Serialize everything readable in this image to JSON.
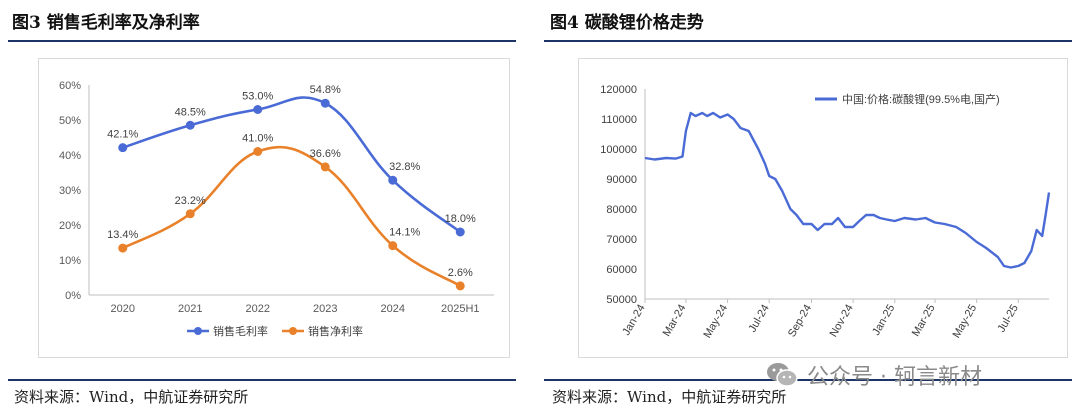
{
  "left": {
    "title": "图3  销售毛利率及净利率",
    "source": "资料来源：Wind，中航证券研究所"
  },
  "right": {
    "title": "图4  碳酸锂价格走势",
    "source": "资料来源：Wind，中航证券研究所"
  },
  "watermark": {
    "text": "公众号 · 轲言新材",
    "icon": "wechat-icon"
  },
  "colors": {
    "blue": "#4A6BD6",
    "orange": "#E9812A",
    "rule": "#1d3566",
    "grid": "#d9d9d9"
  },
  "chart_data": [
    {
      "type": "line",
      "categories": [
        "2020",
        "2021",
        "2022",
        "2023",
        "2024",
        "2025H1"
      ],
      "series": [
        {
          "name": "销售毛利率",
          "values": [
            42.1,
            48.5,
            53.0,
            54.8,
            32.8,
            18.0
          ],
          "labels": [
            "42.1%",
            "48.5%",
            "53.0%",
            "54.8%",
            "32.8%",
            "18.0%"
          ]
        },
        {
          "name": "销售净利率",
          "values": [
            13.4,
            23.2,
            41.0,
            36.6,
            14.1,
            2.6
          ],
          "labels": [
            "13.4%",
            "23.2%",
            "41.0%",
            "36.6%",
            "14.1%",
            "2.6%"
          ]
        }
      ],
      "yticks": [
        "0%",
        "10%",
        "20%",
        "30%",
        "40%",
        "50%",
        "60%"
      ],
      "ylim": [
        0,
        60
      ],
      "smooth": true,
      "markers": true,
      "legend": "bottom",
      "grid": false
    },
    {
      "type": "line",
      "x": [
        "2024-01-01",
        "2024-01-15",
        "2024-02-01",
        "2024-02-15",
        "2024-02-25",
        "2024-03-01",
        "2024-03-08",
        "2024-03-15",
        "2024-03-25",
        "2024-04-01",
        "2024-04-10",
        "2024-04-20",
        "2024-05-01",
        "2024-05-10",
        "2024-05-20",
        "2024-06-01",
        "2024-06-15",
        "2024-06-25",
        "2024-07-01",
        "2024-07-10",
        "2024-07-20",
        "2024-08-01",
        "2024-08-10",
        "2024-08-20",
        "2024-09-01",
        "2024-09-10",
        "2024-09-20",
        "2024-10-01",
        "2024-10-10",
        "2024-10-20",
        "2024-11-01",
        "2024-11-10",
        "2024-11-20",
        "2024-12-01",
        "2024-12-10",
        "2024-12-20",
        "2025-01-01",
        "2025-01-15",
        "2025-02-01",
        "2025-02-15",
        "2025-03-01",
        "2025-03-15",
        "2025-04-01",
        "2025-04-15",
        "2025-05-01",
        "2025-05-15",
        "2025-06-01",
        "2025-06-10",
        "2025-06-20",
        "2025-07-01",
        "2025-07-10",
        "2025-07-20",
        "2025-07-28",
        "2025-08-05",
        "2025-08-10",
        "2025-08-15"
      ],
      "y": [
        97000,
        96500,
        97000,
        96800,
        97500,
        106000,
        112000,
        111000,
        112000,
        111000,
        112000,
        110500,
        111500,
        110000,
        107000,
        106000,
        100000,
        95000,
        91000,
        90000,
        86000,
        80000,
        78000,
        75000,
        75000,
        73000,
        75000,
        75000,
        77000,
        74000,
        74000,
        76000,
        78000,
        78000,
        77000,
        76500,
        76000,
        77000,
        76500,
        77000,
        75500,
        75000,
        74000,
        72000,
        69000,
        67000,
        64000,
        61000,
        60500,
        61000,
        62000,
        66000,
        73000,
        71000,
        78000,
        85500
      ],
      "series_name": "中国:价格:碳酸锂(99.5%电,国产)",
      "yticks": [
        "50000",
        "60000",
        "70000",
        "80000",
        "90000",
        "100000",
        "110000",
        "120000"
      ],
      "ylim": [
        50000,
        120000
      ],
      "xticks": [
        "Jan-24",
        "Mar-24",
        "May-24",
        "Jul-24",
        "Sep-24",
        "Nov-24",
        "Jan-25",
        "Mar-25",
        "May-25",
        "Jul-25"
      ],
      "xtick_dates": [
        "2024-01-01",
        "2024-03-01",
        "2024-05-01",
        "2024-07-01",
        "2024-09-01",
        "2024-11-01",
        "2025-01-01",
        "2025-03-01",
        "2025-05-01",
        "2025-07-01"
      ],
      "legend": "top-right",
      "grid": false
    }
  ]
}
